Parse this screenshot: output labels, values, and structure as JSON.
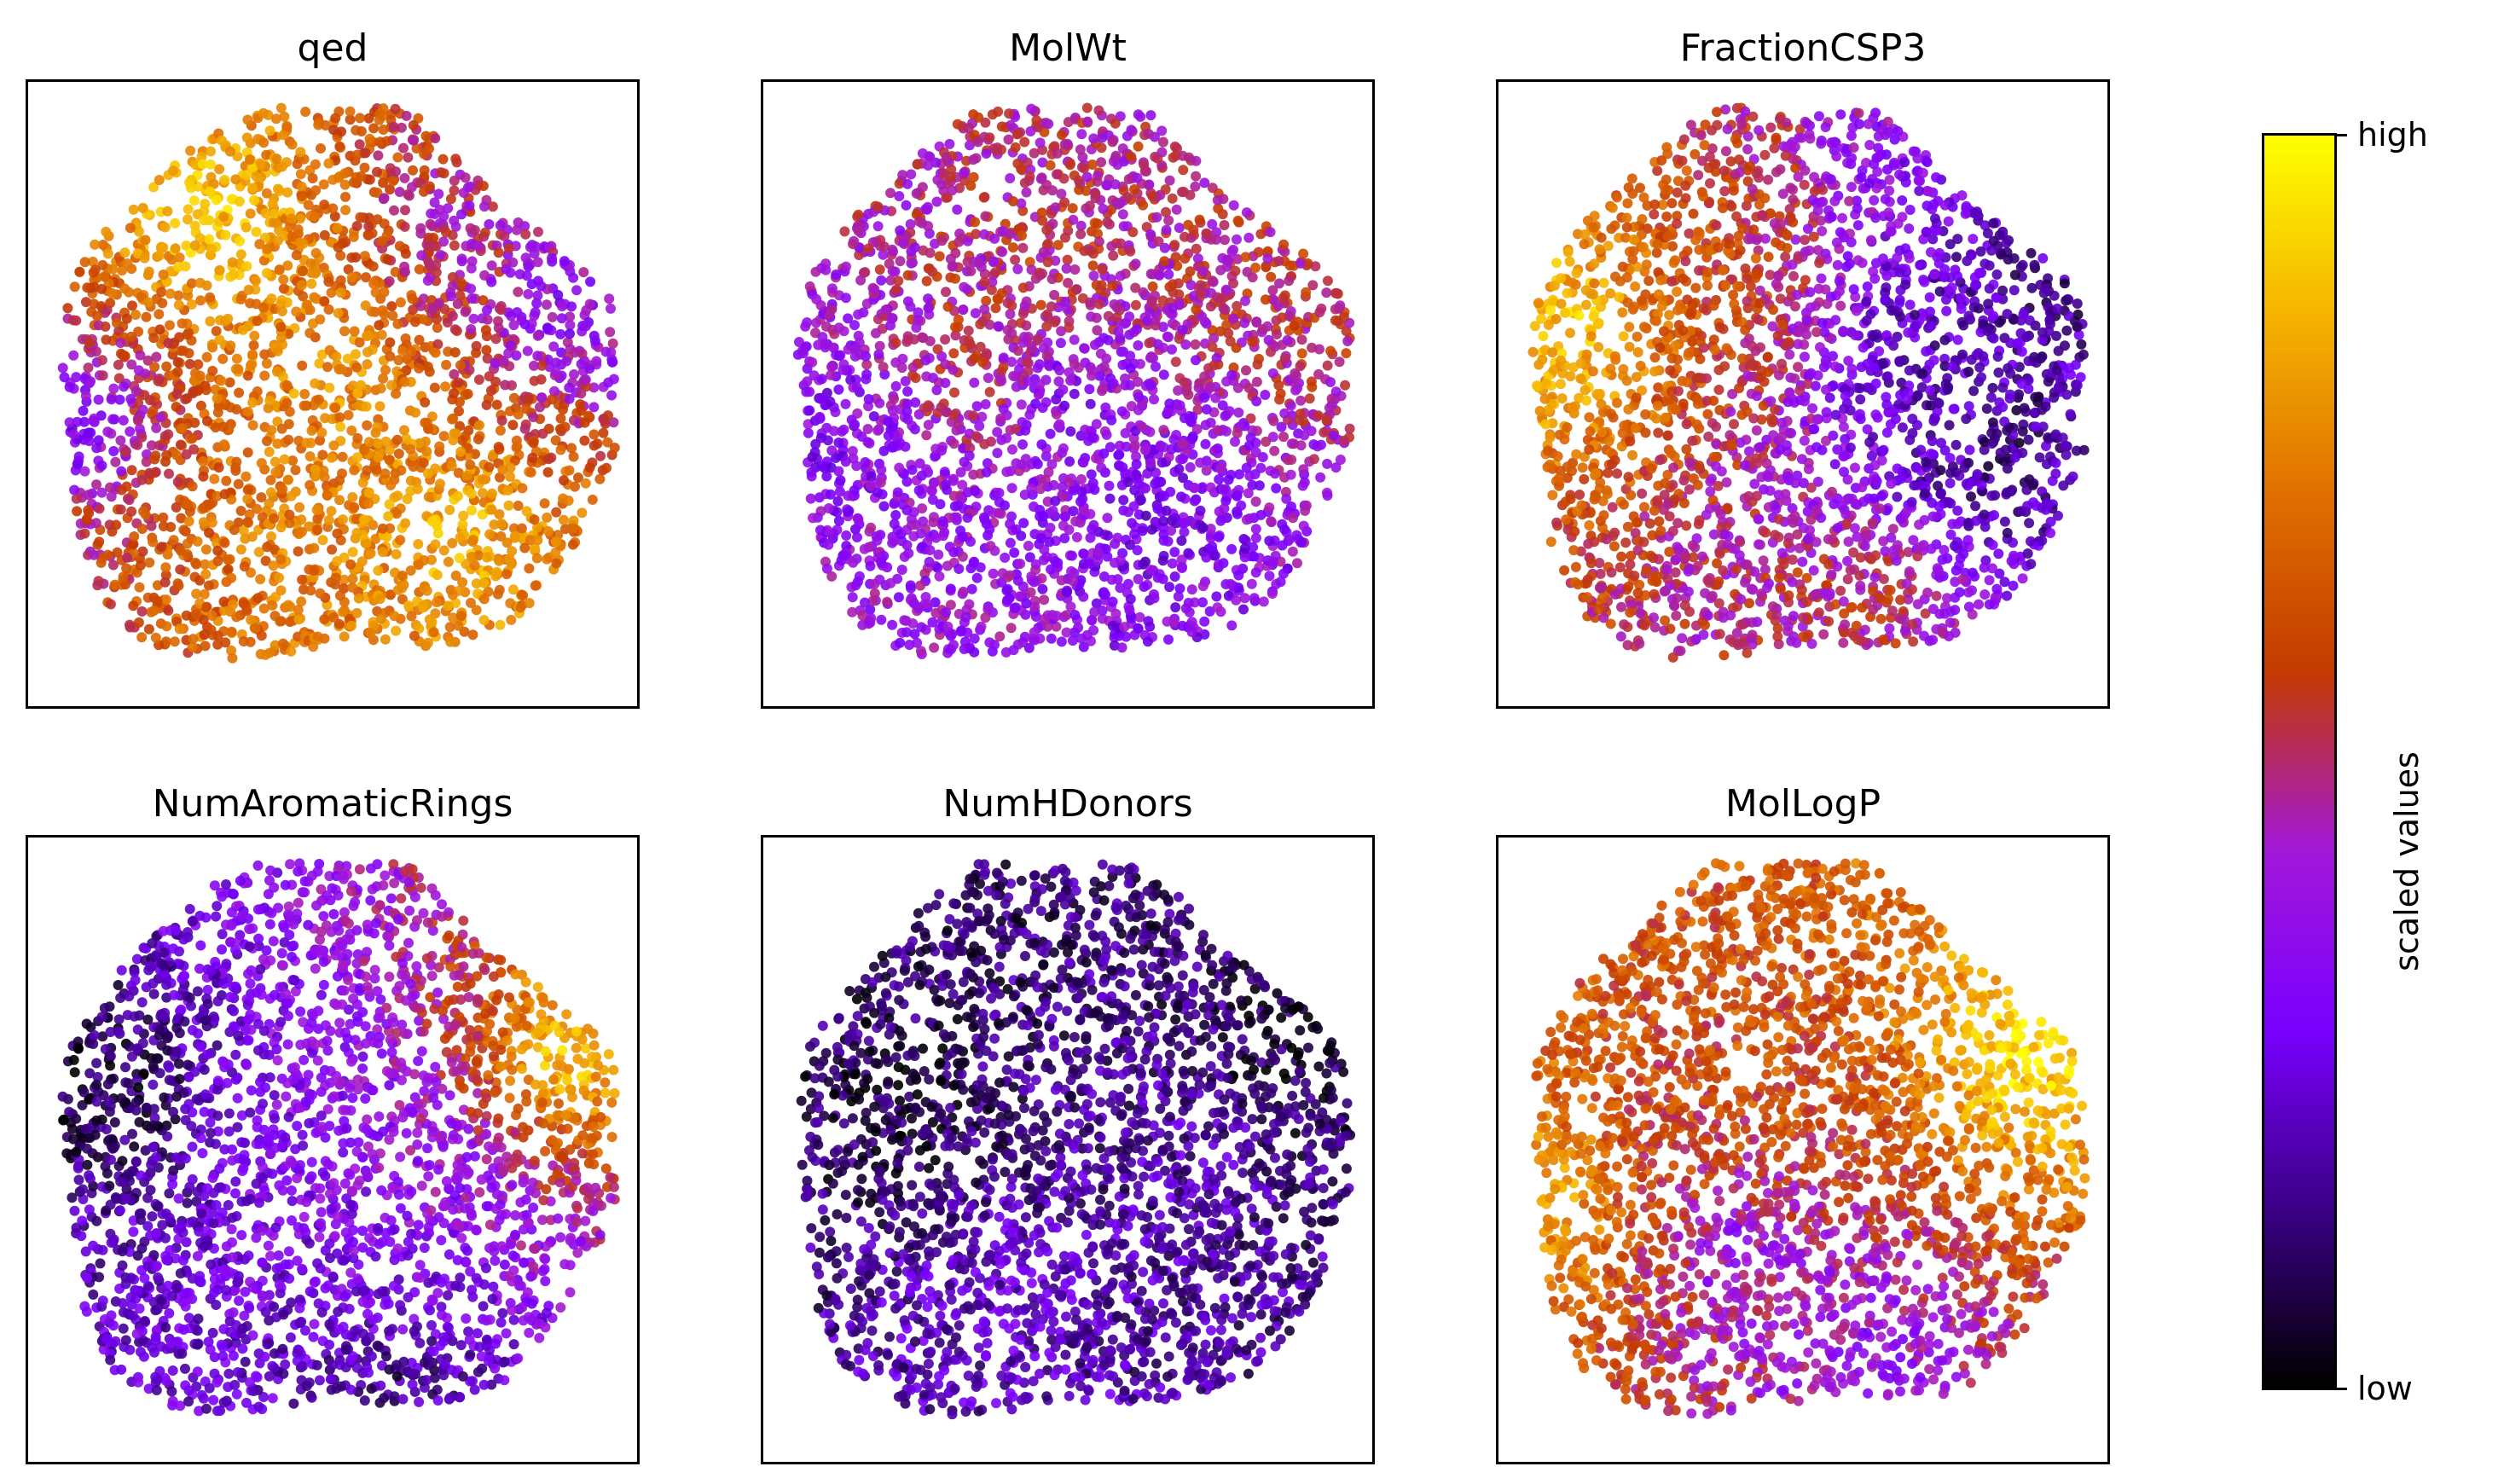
{
  "chart_data": [
    {
      "type": "scatter",
      "title": "qed",
      "description_values": "t-SNE/UMAP-like embedding colored by scaled qed; mostly high (orange/yellow) with violet patches at upper-right and left edge",
      "color_regions": [
        {
          "cx": 0.5,
          "cy": 0.5,
          "value": 0.8
        },
        {
          "cx": 0.3,
          "cy": 0.22,
          "value": 0.92
        },
        {
          "cx": 0.72,
          "cy": 0.25,
          "value": 0.45
        },
        {
          "cx": 0.88,
          "cy": 0.36,
          "value": 0.3
        },
        {
          "cx": 0.08,
          "cy": 0.54,
          "value": 0.3
        },
        {
          "cx": 0.4,
          "cy": 0.7,
          "value": 0.72
        },
        {
          "cx": 0.7,
          "cy": 0.72,
          "value": 0.85
        }
      ]
    },
    {
      "type": "scatter",
      "title": "MolWt",
      "color_regions": [
        {
          "cx": 0.5,
          "cy": 0.5,
          "value": 0.3
        },
        {
          "cx": 0.48,
          "cy": 0.28,
          "value": 0.55
        },
        {
          "cx": 0.35,
          "cy": 0.45,
          "value": 0.55
        },
        {
          "cx": 0.85,
          "cy": 0.35,
          "value": 0.55
        },
        {
          "cx": 0.65,
          "cy": 0.7,
          "value": 0.28
        },
        {
          "cx": 0.12,
          "cy": 0.55,
          "value": 0.3
        }
      ]
    },
    {
      "type": "scatter",
      "title": "FractionCSP3",
      "color_regions": [
        {
          "cx": 0.12,
          "cy": 0.4,
          "value": 0.92
        },
        {
          "cx": 0.35,
          "cy": 0.35,
          "value": 0.62
        },
        {
          "cx": 0.7,
          "cy": 0.45,
          "value": 0.2
        },
        {
          "cx": 0.8,
          "cy": 0.6,
          "value": 0.1
        },
        {
          "cx": 0.6,
          "cy": 0.82,
          "value": 0.55
        },
        {
          "cx": 0.9,
          "cy": 0.35,
          "value": 0.15
        }
      ]
    },
    {
      "type": "scatter",
      "title": "NumAromaticRings",
      "color_regions": [
        {
          "cx": 0.15,
          "cy": 0.4,
          "value": 0.05
        },
        {
          "cx": 0.5,
          "cy": 0.4,
          "value": 0.33
        },
        {
          "cx": 0.7,
          "cy": 0.55,
          "value": 0.38
        },
        {
          "cx": 0.6,
          "cy": 0.7,
          "value": 0.3
        },
        {
          "cx": 0.88,
          "cy": 0.35,
          "value": 0.92
        },
        {
          "cx": 0.6,
          "cy": 0.88,
          "value": 0.1
        }
      ]
    },
    {
      "type": "scatter",
      "title": "NumHDonors",
      "color_regions": [
        {
          "cx": 0.5,
          "cy": 0.5,
          "value": 0.15
        },
        {
          "cx": 0.25,
          "cy": 0.45,
          "value": 0.05
        },
        {
          "cx": 0.7,
          "cy": 0.5,
          "value": 0.2
        },
        {
          "cx": 0.4,
          "cy": 0.7,
          "value": 0.25
        },
        {
          "cx": 0.85,
          "cy": 0.35,
          "value": 0.05
        }
      ]
    },
    {
      "type": "scatter",
      "title": "MolLogP",
      "color_regions": [
        {
          "cx": 0.5,
          "cy": 0.4,
          "value": 0.62
        },
        {
          "cx": 0.3,
          "cy": 0.5,
          "value": 0.58
        },
        {
          "cx": 0.4,
          "cy": 0.65,
          "value": 0.35
        },
        {
          "cx": 0.85,
          "cy": 0.35,
          "value": 0.95
        },
        {
          "cx": 0.08,
          "cy": 0.58,
          "value": 0.85
        },
        {
          "cx": 0.6,
          "cy": 0.82,
          "value": 0.35
        }
      ]
    }
  ],
  "colorbar": {
    "label": "scaled values",
    "tick_high": "high",
    "tick_low": "low",
    "colormap": "gnuplot",
    "stops": [
      "#000000",
      "#3b0085",
      "#7a00ff",
      "#a218d8",
      "#c43a00",
      "#e07000",
      "#f5b300",
      "#ffff00"
    ]
  }
}
